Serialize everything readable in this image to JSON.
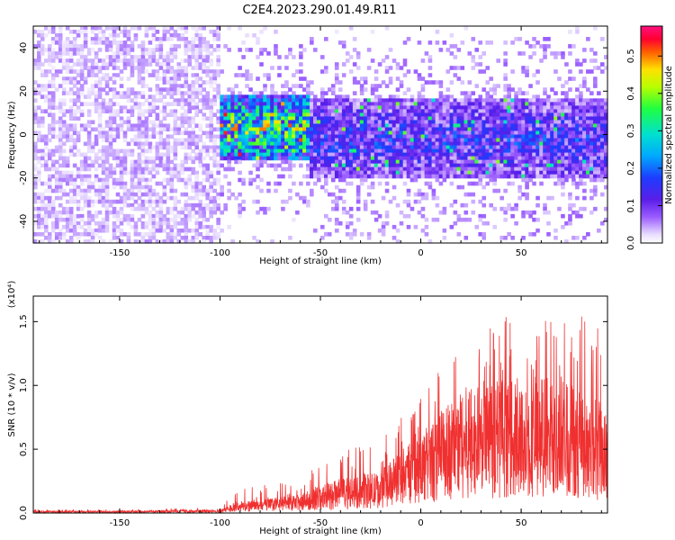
{
  "title": "C2E4.2023.290.01.49.R11",
  "colors": {
    "snr_line": "#f03030",
    "spectrogram_low": "#d9c8ff",
    "spectrogram_mid": "#6a1ee0",
    "axis": "#000000"
  },
  "chart_data": [
    {
      "type": "heatmap",
      "xlabel": "Height of straight line (km)",
      "ylabel": "Frequency (Hz)",
      "xlim": [
        -193,
        93
      ],
      "ylim": [
        -50,
        50
      ],
      "x_ticks": [
        -150,
        -100,
        -50,
        0,
        50
      ],
      "y_ticks": [
        40,
        20,
        0,
        -20,
        -40
      ],
      "colormap": "rainbow (white→purple→blue→cyan→green→yellow→red→magenta)",
      "colorbar": {
        "label": "Normalized spectral amplitude",
        "range": [
          0,
          0.58
        ],
        "ticks": [
          0.0,
          0.1,
          0.2,
          0.3,
          0.4,
          0.5
        ]
      },
      "regions": [
        {
          "x_range": [
            -193,
            -100
          ],
          "freq_range": [
            -50,
            50
          ],
          "typical_amplitude": 0.03,
          "description_level": "broadband noise"
        },
        {
          "x_range": [
            -100,
            -55
          ],
          "freq_center": 3,
          "freq_halfwidth": 15,
          "typical_amplitude": 0.35,
          "peak_amplitude": 0.55
        },
        {
          "x_range": [
            -55,
            93
          ],
          "freq_center": -2,
          "freq_halfwidth": 18,
          "typical_amplitude": 0.15,
          "peak_amplitude": 0.4
        }
      ]
    },
    {
      "type": "line",
      "xlabel": "Height of straight line (km)",
      "ylabel": "SNR (10 * v/v)",
      "y_multiplier": "(x10⁴)",
      "xlim": [
        -193,
        93
      ],
      "ylim": [
        0,
        1.7
      ],
      "x_ticks": [
        -150,
        -100,
        -50,
        0,
        50
      ],
      "y_ticks": [
        0.0,
        0.5,
        1.0,
        1.5
      ],
      "series": [
        {
          "envelope": {
            "x": [
              -193,
              -150,
              -100,
              -92,
              -80,
              -60,
              -50,
              -40,
              -20,
              -10,
              0,
              10,
              20,
              30,
              40,
              50,
              60,
              70,
              80,
              90,
              93
            ],
            "upper": [
              0.03,
              0.03,
              0.04,
              0.18,
              0.22,
              0.25,
              0.4,
              0.5,
              0.55,
              0.8,
              0.95,
              1.15,
              1.3,
              1.4,
              1.55,
              1.5,
              1.55,
              1.6,
              1.6,
              1.45,
              1.3
            ],
            "typical": [
              0.01,
              0.01,
              0.015,
              0.05,
              0.06,
              0.08,
              0.12,
              0.15,
              0.18,
              0.28,
              0.35,
              0.45,
              0.55,
              0.55,
              0.6,
              0.55,
              0.6,
              0.6,
              0.55,
              0.5,
              0.45
            ]
          }
        }
      ]
    }
  ]
}
